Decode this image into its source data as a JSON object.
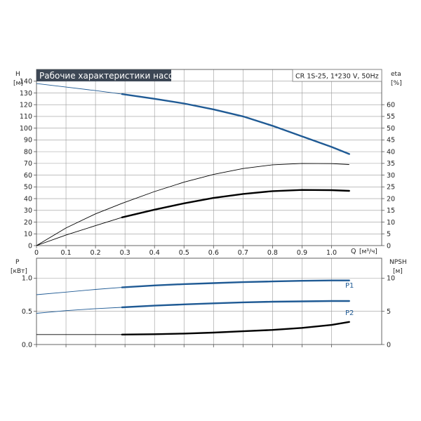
{
  "header": {
    "title": "Рабочие характеристики насоса",
    "model_info": "CR 1S-25, 1*230 V, 50Hz"
  },
  "colors": {
    "title_bg": "#3d4755",
    "grid": "#9a9a9a",
    "blue": "#1f5a94",
    "black": "#000000"
  },
  "chart_data": [
    {
      "type": "line",
      "name": "head-efficiency",
      "left_axis": {
        "label": "H",
        "unit": "[м]",
        "ylim": [
          0,
          150
        ],
        "ticks": [
          0,
          10,
          20,
          30,
          40,
          50,
          60,
          70,
          80,
          90,
          100,
          110,
          120,
          130,
          140
        ]
      },
      "right_axis": {
        "label": "eta",
        "unit": "[%]",
        "ylim": [
          0,
          75
        ],
        "ticks": [
          0,
          5,
          10,
          15,
          20,
          25,
          30,
          35,
          40,
          45,
          50,
          55,
          60
        ]
      },
      "x_axis": {
        "label": "Q",
        "unit": "[м³/ч]",
        "xlim": [
          0,
          1.17
        ],
        "ticks": [
          0,
          0.1,
          0.2,
          0.3,
          0.4,
          0.5,
          0.6,
          0.7,
          0.8,
          0.9,
          1.0
        ],
        "tick_labels": [
          "0",
          "0.1",
          "0.2",
          "0.3",
          "0.4",
          "0.5",
          "0.6",
          "0.7",
          "0.8",
          "0.9",
          "1.0"
        ]
      },
      "grid": true,
      "series": [
        {
          "key": "H",
          "axis": "left",
          "color": "#1f5a94",
          "x": [
            0,
            0.1,
            0.2,
            0.29,
            0.4,
            0.5,
            0.6,
            0.7,
            0.8,
            0.9,
            1.0,
            1.06
          ],
          "y": [
            138,
            135,
            132,
            129,
            125,
            121,
            116,
            110,
            102,
            93,
            84,
            78
          ],
          "bold_from": 0.29
        },
        {
          "key": "eta_thin",
          "axis": "right",
          "color": "#000000",
          "x": [
            0,
            0.1,
            0.2,
            0.29,
            0.4,
            0.5,
            0.6,
            0.7,
            0.8,
            0.9,
            1.0,
            1.06
          ],
          "y": [
            0,
            7.5,
            13.5,
            18,
            23,
            27,
            30.3,
            32.8,
            34.4,
            35,
            34.9,
            34.5
          ],
          "bold_from": null
        },
        {
          "key": "eta_bold",
          "axis": "right",
          "color": "#000000",
          "x": [
            0,
            0.1,
            0.2,
            0.29,
            0.4,
            0.5,
            0.6,
            0.7,
            0.8,
            0.9,
            1.0,
            1.06
          ],
          "y": [
            0,
            4.5,
            8.5,
            12,
            15.3,
            18,
            20.3,
            22,
            23.2,
            23.7,
            23.6,
            23.3
          ],
          "bold_from": 0.29
        }
      ]
    },
    {
      "type": "line",
      "name": "power-npsh",
      "left_axis": {
        "label": "P",
        "unit": "[кВт]",
        "ylim": [
          0,
          1.3
        ],
        "ticks": [
          0.0,
          0.5,
          1.0
        ],
        "tick_labels": [
          "0.0",
          "0.5",
          "1.0"
        ]
      },
      "right_axis": {
        "label": "NPSH",
        "unit": "[м]",
        "ylim": [
          0,
          13
        ],
        "ticks": [
          0,
          5,
          10
        ]
      },
      "grid": true,
      "series": [
        {
          "key": "P1",
          "label": "P1",
          "axis": "left",
          "color": "#1f5a94",
          "x": [
            0,
            0.1,
            0.2,
            0.29,
            0.4,
            0.5,
            0.6,
            0.7,
            0.8,
            0.9,
            1.0,
            1.06
          ],
          "y": [
            0.75,
            0.79,
            0.83,
            0.86,
            0.89,
            0.91,
            0.925,
            0.94,
            0.95,
            0.96,
            0.965,
            0.965
          ],
          "bold_from": 0.29
        },
        {
          "key": "P2",
          "label": "P2",
          "axis": "left",
          "color": "#1f5a94",
          "x": [
            0,
            0.1,
            0.2,
            0.29,
            0.4,
            0.5,
            0.6,
            0.7,
            0.8,
            0.9,
            1.0,
            1.06
          ],
          "y": [
            0.47,
            0.51,
            0.54,
            0.56,
            0.585,
            0.605,
            0.62,
            0.635,
            0.645,
            0.65,
            0.655,
            0.655
          ],
          "bold_from": 0.29
        },
        {
          "key": "NPSH",
          "axis": "right",
          "color": "#000000",
          "x": [
            0,
            0.1,
            0.2,
            0.29,
            0.4,
            0.5,
            0.6,
            0.7,
            0.8,
            0.9,
            1.0,
            1.06
          ],
          "y": [
            1.5,
            1.5,
            1.5,
            1.5,
            1.55,
            1.65,
            1.8,
            2.0,
            2.2,
            2.5,
            2.95,
            3.4
          ],
          "bold_from": 0.29
        }
      ]
    }
  ]
}
